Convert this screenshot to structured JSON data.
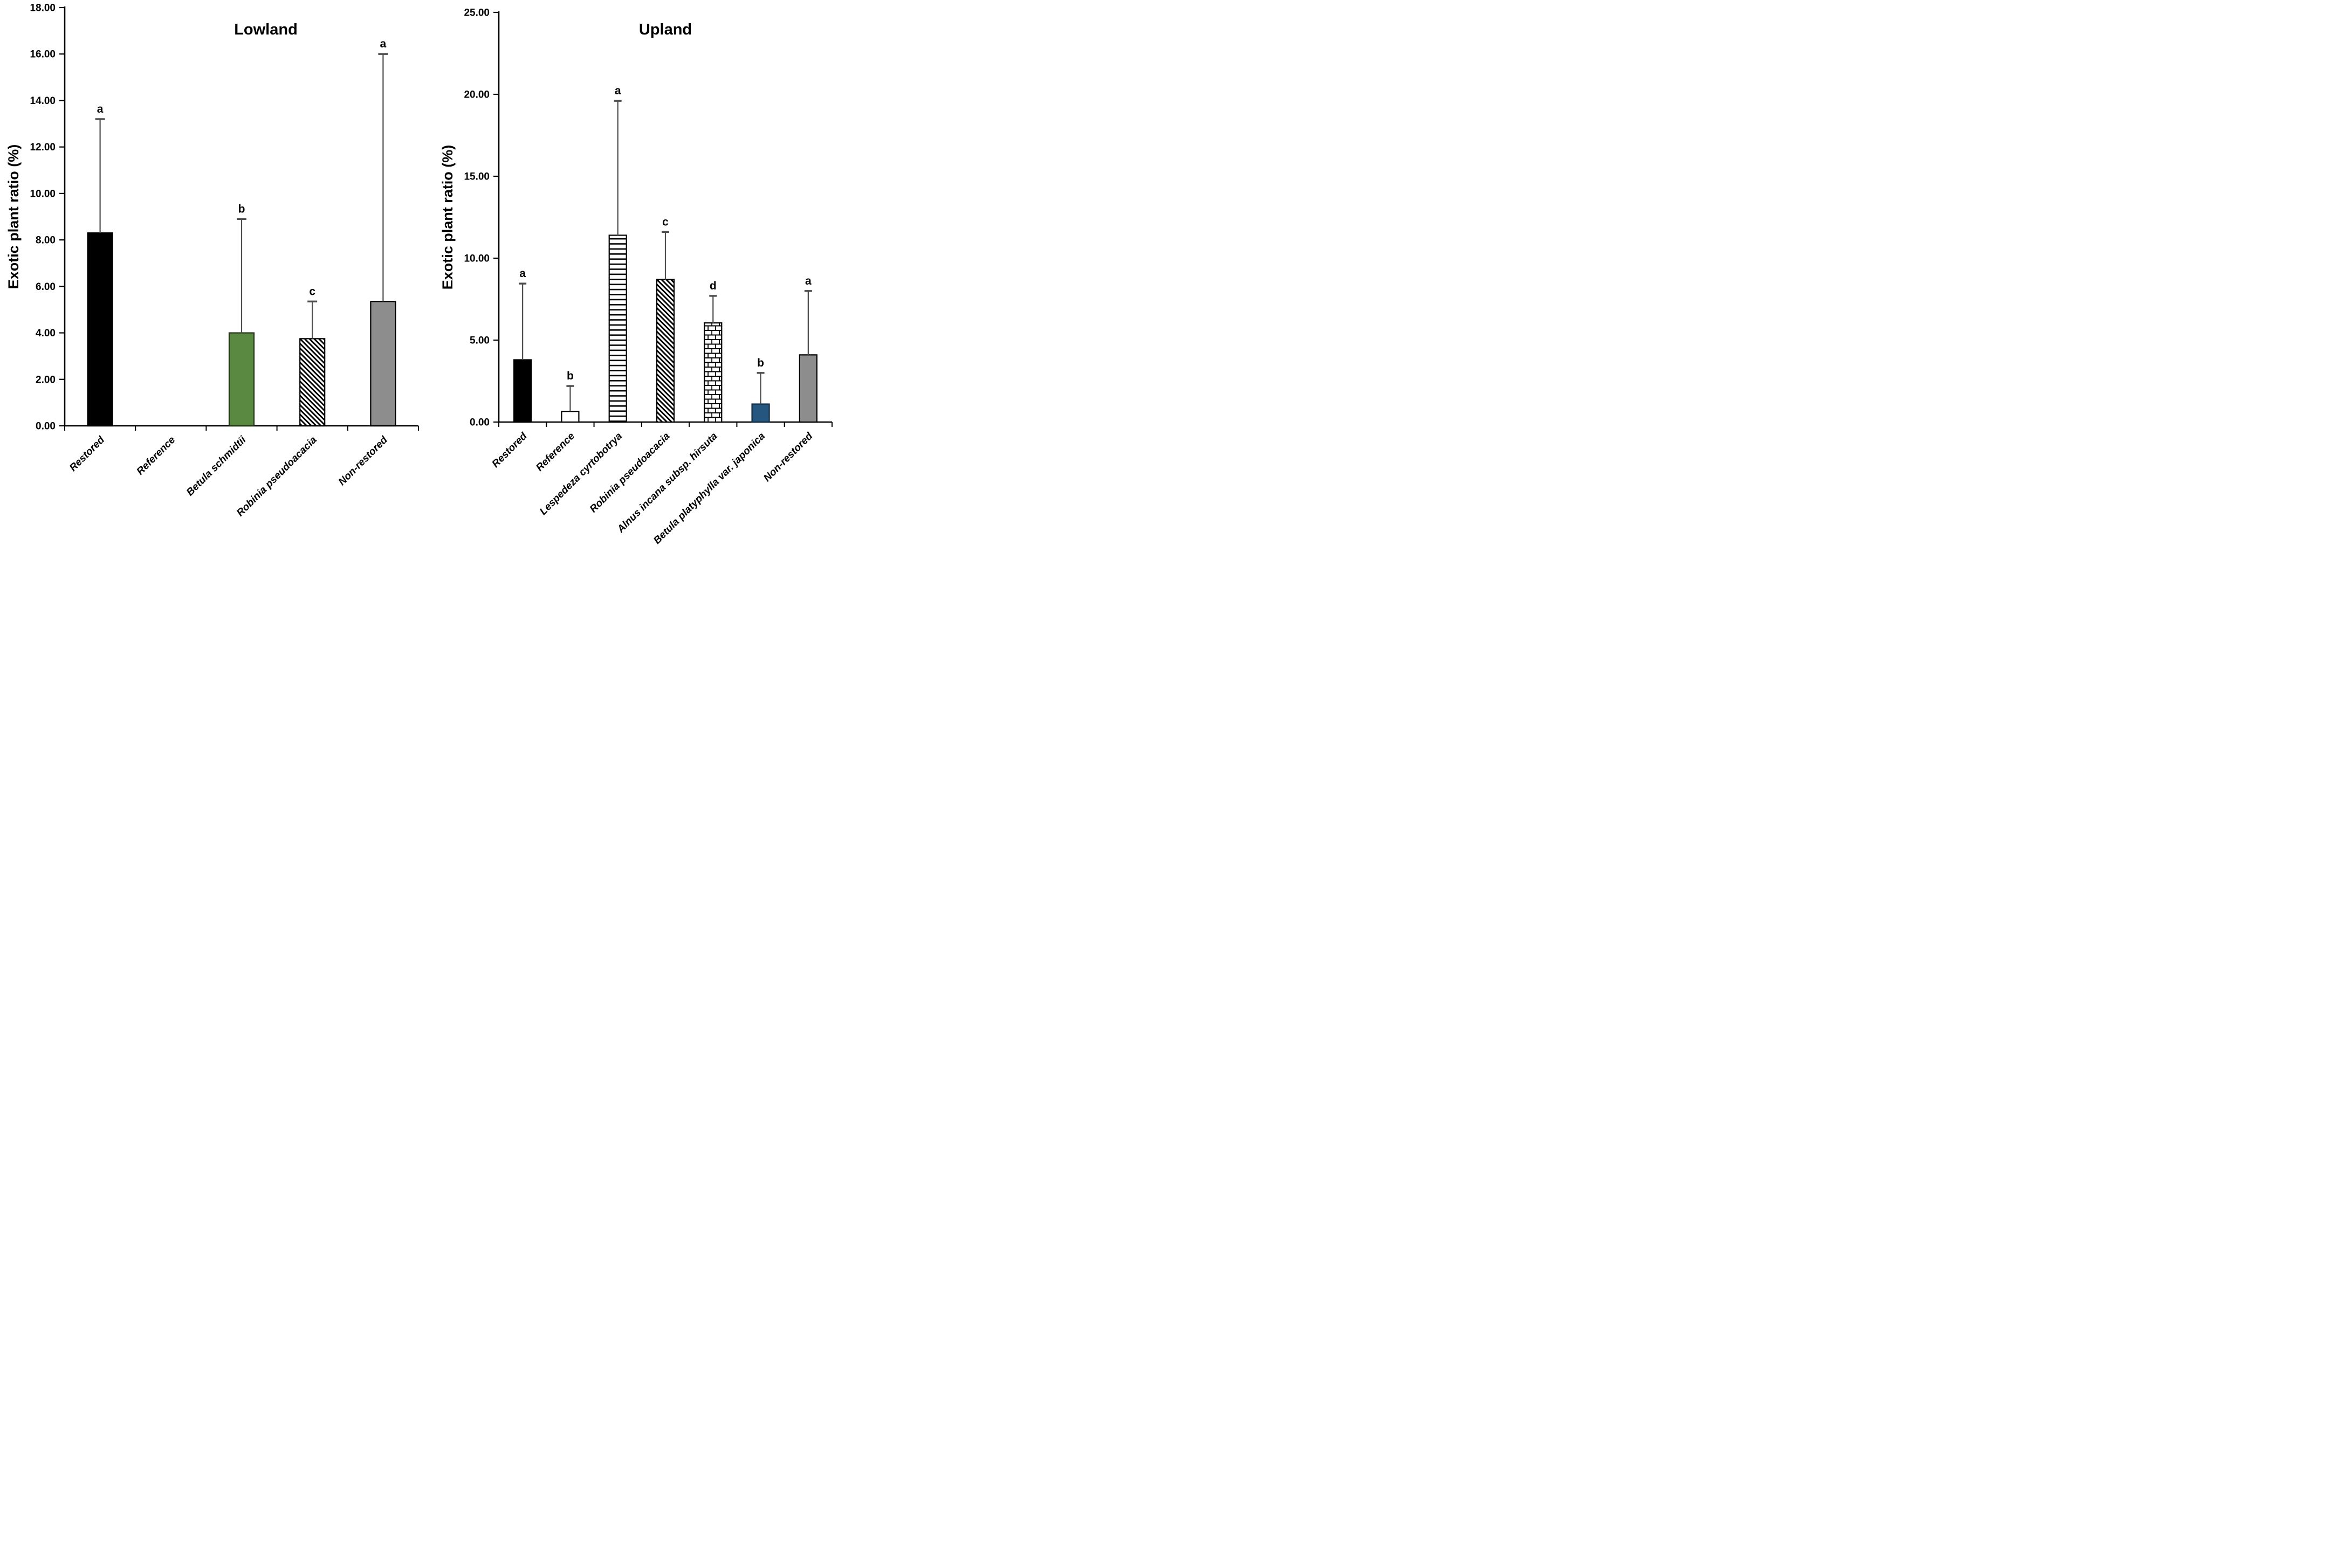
{
  "figure": {
    "background": "#ffffff",
    "error_bar_color": "#4d4d4d"
  },
  "chart_data": [
    {
      "type": "bar",
      "title": "Lowland",
      "xlabel": "",
      "ylabel": "Exotic plant ratio (%)",
      "ylim": [
        0,
        18
      ],
      "ytick_step": 2,
      "grid": false,
      "legend": "none",
      "ytick_labels": [
        "0.00",
        "2.00",
        "4.00",
        "6.00",
        "8.00",
        "10.00",
        "12.00",
        "14.00",
        "16.00",
        "18.00"
      ],
      "categories": [
        "Restored",
        "Reference",
        "Betula schmidtii",
        "Robinia pseudoacacia",
        "Non-restored"
      ],
      "values": [
        8.3,
        0,
        4.0,
        3.75,
        5.35
      ],
      "error_top": [
        13.2,
        null,
        8.9,
        5.35,
        16.0
      ],
      "sig_letters": [
        "a",
        null,
        "b",
        "c",
        "a"
      ],
      "bar_styles": [
        {
          "fill": "#000000",
          "border": "#000000",
          "pattern": "solid"
        },
        {
          "fill": "#ffffff",
          "border": "#000000",
          "pattern": "solid"
        },
        {
          "fill": "#5a8a41",
          "border": "#24351a",
          "pattern": "solid"
        },
        {
          "fill": "#ffffff",
          "border": "#000000",
          "pattern": "diagonal"
        },
        {
          "fill": "#8d8d8d",
          "border": "#000000",
          "pattern": "solid"
        }
      ]
    },
    {
      "type": "bar",
      "title": "Upland",
      "xlabel": "",
      "ylabel": "Exotic plant ratio (%)",
      "ylim": [
        0,
        25
      ],
      "ytick_step": 5,
      "grid": false,
      "legend": "none",
      "ytick_labels": [
        "0.00",
        "5.00",
        "10.00",
        "15.00",
        "20.00",
        "25.00"
      ],
      "categories": [
        "Restored",
        "Reference",
        "Lespedeza cyrtobotrya",
        "Robinia pseudoacacia",
        "Alnus incana subsp. hirsuta",
        "Betula platyphylla var. japonica",
        "Non-restored"
      ],
      "values": [
        3.8,
        0.65,
        11.4,
        8.7,
        6.05,
        1.1,
        4.1
      ],
      "error_top": [
        8.45,
        2.2,
        19.6,
        11.6,
        7.7,
        3.0,
        8.0
      ],
      "sig_letters": [
        "a",
        "b",
        "a",
        "c",
        "d",
        "b",
        "a"
      ],
      "bar_styles": [
        {
          "fill": "#000000",
          "border": "#000000",
          "pattern": "solid"
        },
        {
          "fill": "#ffffff",
          "border": "#000000",
          "pattern": "solid"
        },
        {
          "fill": "#ffffff",
          "border": "#000000",
          "pattern": "horizontal"
        },
        {
          "fill": "#ffffff",
          "border": "#000000",
          "pattern": "diagonal"
        },
        {
          "fill": "#ffffff",
          "border": "#000000",
          "pattern": "brick"
        },
        {
          "fill": "#24567f",
          "border": "#122c44",
          "pattern": "solid"
        },
        {
          "fill": "#8d8d8d",
          "border": "#000000",
          "pattern": "solid"
        }
      ]
    }
  ]
}
